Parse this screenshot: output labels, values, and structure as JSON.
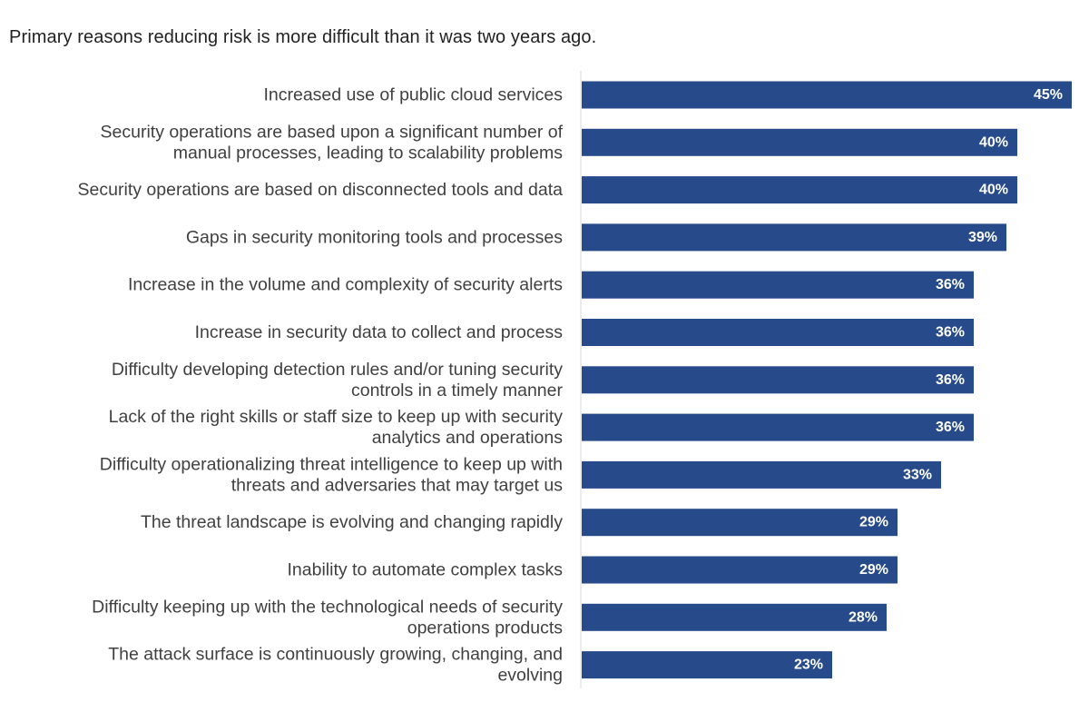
{
  "chart_data": {
    "type": "bar",
    "orientation": "horizontal",
    "title": "Primary reasons reducing risk is more difficult than it was two years ago.",
    "xlabel": "",
    "ylabel": "",
    "xlim": [
      0,
      45
    ],
    "grid": false,
    "legend": "none",
    "bar_color": "#264a8a",
    "value_suffix": "%",
    "categories": [
      [
        "Increased use of public cloud services"
      ],
      [
        "Security operations are based upon a significant number of",
        "manual processes, leading to scalability problems"
      ],
      [
        "Security operations are based on disconnected tools and data"
      ],
      [
        "Gaps in security monitoring tools and processes"
      ],
      [
        "Increase in the volume and complexity of security alerts"
      ],
      [
        "Increase in security data to collect and process"
      ],
      [
        "Difficulty developing detection rules and/or tuning security",
        "controls in a timely manner"
      ],
      [
        "Lack of the right skills or staff size to keep up with security",
        "analytics and operations"
      ],
      [
        "Difficulty operationalizing threat intelligence to keep up with",
        "threats and adversaries that may target us"
      ],
      [
        "The threat landscape is evolving and changing rapidly"
      ],
      [
        "Inability to automate complex tasks"
      ],
      [
        "Difficulty keeping up with the technological needs of security",
        "operations products"
      ],
      [
        "The attack surface is continuously growing, changing, and",
        "evolving"
      ]
    ],
    "values": [
      45,
      40,
      40,
      39,
      36,
      36,
      36,
      36,
      33,
      29,
      29,
      28,
      23
    ]
  }
}
